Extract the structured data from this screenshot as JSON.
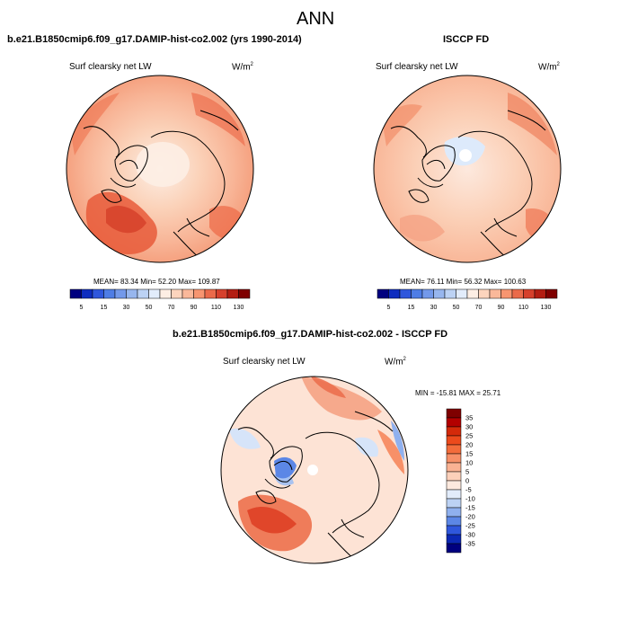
{
  "page": {
    "title": "ANN"
  },
  "chart_data": [
    {
      "type": "heatmap",
      "title": "b.e21.B1850cmip6.f09_g17.DAMIP-hist-co2.002 (yrs 1990-2014)",
      "field_label": "Surf clearsky net LW",
      "units": "W/m",
      "units_exp": "2",
      "stats": {
        "mean": "83.34",
        "min": "52.20",
        "max": "109.87"
      },
      "stats_text": "MEAN=  83.34  Min=  52.20  Max=  109.87",
      "colorbar": {
        "levels": [
          5,
          10,
          15,
          20,
          30,
          40,
          50,
          60,
          70,
          80,
          90,
          100,
          110,
          120,
          130
        ],
        "tick_labels": [
          "5",
          "15",
          "30",
          "50",
          "70",
          "90",
          "110",
          "130"
        ],
        "colors": [
          "#00007f",
          "#0f2dbf",
          "#2f57dc",
          "#4e7de5",
          "#7399ea",
          "#97b6ee",
          "#bcd2f4",
          "#e2ecfb",
          "#fdeee4",
          "#fcd4bd",
          "#fab89a",
          "#f79570",
          "#ea6a4a",
          "#d6402c",
          "#b31d12",
          "#7f0000"
        ]
      }
    },
    {
      "type": "heatmap",
      "title": "ISCCP FD",
      "field_label": "Surf clearsky net LW",
      "units": "W/m",
      "units_exp": "2",
      "stats": {
        "mean": "76.11",
        "min": "56.32",
        "max": "100.63"
      },
      "stats_text": "MEAN=  76.11  Min=  56.32  Max=  100.63",
      "colorbar": {
        "levels": [
          5,
          10,
          15,
          20,
          30,
          40,
          50,
          60,
          70,
          80,
          90,
          100,
          110,
          120,
          130
        ],
        "tick_labels": [
          "5",
          "15",
          "30",
          "50",
          "70",
          "90",
          "110",
          "130"
        ],
        "colors": [
          "#00007f",
          "#0f2dbf",
          "#2f57dc",
          "#4e7de5",
          "#7399ea",
          "#97b6ee",
          "#bcd2f4",
          "#e2ecfb",
          "#fdeee4",
          "#fcd4bd",
          "#fab89a",
          "#f79570",
          "#ea6a4a",
          "#d6402c",
          "#b31d12",
          "#7f0000"
        ]
      }
    },
    {
      "type": "heatmap",
      "title": "b.e21.B1850cmip6.f09_g17.DAMIP-hist-co2.002 - ISCCP FD",
      "field_label": "Surf clearsky net LW",
      "units": "W/m",
      "units_exp": "2",
      "stats": {
        "min": "-15.81",
        "max": "25.71"
      },
      "stats_text": "MIN = -15.81  MAX =  25.71",
      "colorbar": {
        "levels": [
          35,
          30,
          25,
          20,
          15,
          10,
          5,
          0,
          -5,
          -10,
          -15,
          -20,
          -25,
          -30,
          -35
        ],
        "tick_labels": [
          "35",
          "30",
          "25",
          "20",
          "15",
          "10",
          "5",
          "0",
          "-5",
          "-10",
          "-15",
          "-20",
          "-25",
          "-30",
          "-35"
        ],
        "colors": [
          "#7f0000",
          "#b30000",
          "#d42a0a",
          "#ec4a1c",
          "#f36c3b",
          "#f79068",
          "#fab293",
          "#fcd0ba",
          "#fde9de",
          "#e2ecfb",
          "#bcd2f4",
          "#8fb0ee",
          "#5c87e6",
          "#2f57dc",
          "#0c28b4",
          "#00007f"
        ]
      }
    }
  ]
}
